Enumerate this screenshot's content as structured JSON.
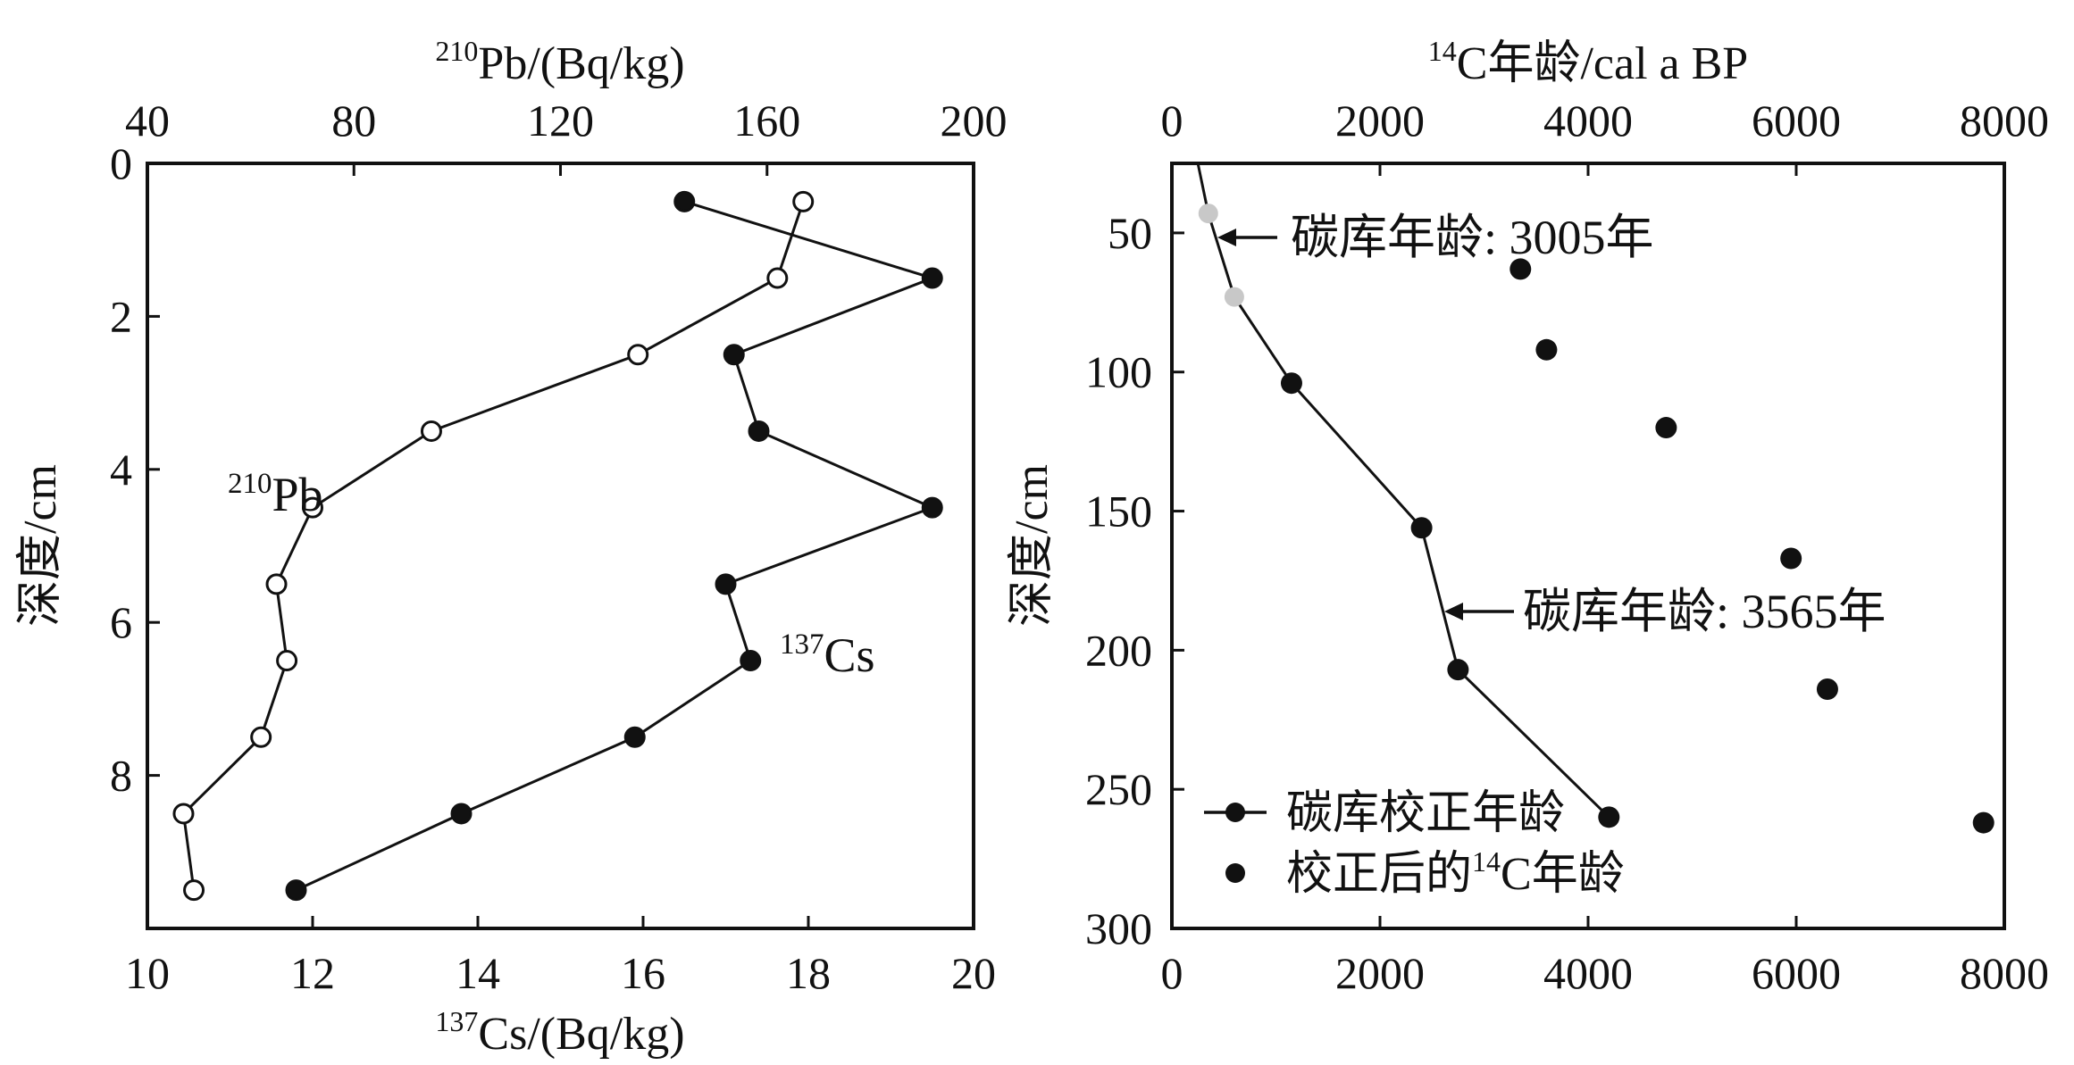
{
  "chart_data": [
    {
      "type": "line",
      "x_top": {
        "label_mass": "Pb",
        "label_unit": "/(Bq/kg)",
        "label_sup": "210",
        "range": [
          40,
          200
        ],
        "ticks": [
          40,
          80,
          120,
          160,
          200
        ]
      },
      "x_bottom": {
        "label_mass": "Cs",
        "label_unit": "/(Bq/kg)",
        "label_sup": "137",
        "range": [
          10,
          20
        ],
        "ticks": [
          10,
          12,
          14,
          16,
          18,
          20
        ]
      },
      "y": {
        "label": "深度/cm",
        "range": [
          0,
          10
        ],
        "ticks": [
          0,
          2,
          4,
          6,
          8
        ],
        "inverted": true
      },
      "series": [
        {
          "name": "Pb",
          "name_sup": "210",
          "axis": "top",
          "marker": "open-circle",
          "depth": [
            0.5,
            1.5,
            2.5,
            3.5,
            4.5,
            5.5,
            6.5,
            7.5,
            8.5,
            9.5
          ],
          "values": [
            167,
            162,
            135,
            95,
            72,
            65,
            67,
            62,
            47,
            49
          ]
        },
        {
          "name": "Cs",
          "name_sup": "137",
          "axis": "bottom",
          "marker": "filled-circle",
          "depth": [
            0.5,
            1.5,
            2.5,
            3.5,
            4.5,
            5.5,
            6.5,
            7.5,
            8.5,
            9.5
          ],
          "values": [
            16.5,
            19.5,
            17.1,
            17.4,
            19.5,
            17.0,
            17.3,
            15.9,
            13.8,
            11.8
          ]
        }
      ]
    },
    {
      "type": "scatter",
      "x_top": {
        "label_prefix_sup": "14",
        "label": "C年龄/cal a BP",
        "range": [
          0,
          8000
        ],
        "ticks": [
          0,
          2000,
          4000,
          6000,
          8000
        ]
      },
      "x_bottom": {
        "range": [
          0,
          8000
        ],
        "ticks": [
          0,
          2000,
          4000,
          6000,
          8000
        ]
      },
      "y": {
        "label": "深度/cm",
        "range": [
          25,
          300
        ],
        "ticks": [
          50,
          100,
          150,
          200,
          250,
          300
        ],
        "inverted": true
      },
      "series": [
        {
          "name": "碳库校正年龄",
          "marker": "filled-circle-line",
          "x": [
            1150,
            2400,
            2750,
            4200
          ],
          "y": [
            104,
            156,
            207,
            260
          ]
        },
        {
          "name": "校正后的",
          "name_sup": "14",
          "name_suffix": "C年龄",
          "marker": "filled-circle",
          "x": [
            3350,
            3600,
            4750,
            5950,
            6300,
            7800
          ],
          "y": [
            63,
            92,
            120,
            167,
            214,
            262
          ]
        },
        {
          "marker": "gray-circle-line",
          "x": [
            250,
            350,
            600,
            1150
          ],
          "y": [
            25,
            43,
            73,
            104
          ]
        }
      ],
      "annotations": [
        {
          "text": "碳库年龄: 3005年",
          "x": 450,
          "y": 50
        },
        {
          "text": "碳库年龄: 3565年",
          "x": 2550,
          "y": 185
        }
      ]
    }
  ]
}
